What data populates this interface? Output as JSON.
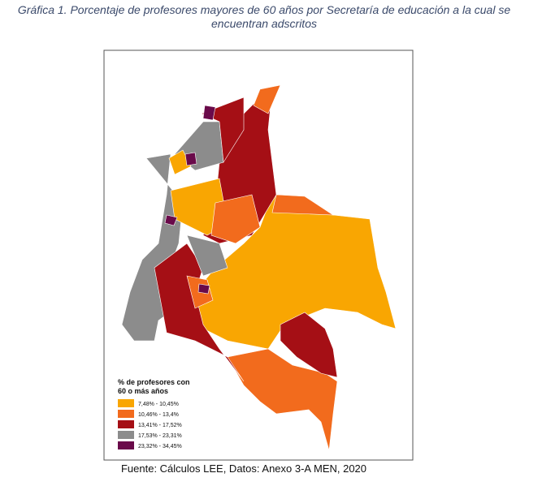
{
  "title": "Gráfica 1. Porcentaje de profesores mayores de 60 años por Secretaría de educación a la cual se encuentran adscritos",
  "map": {
    "legend": {
      "title": [
        "% de profesores con",
        "60 o más años"
      ],
      "items": [
        {
          "label": "7,48% - 10,45%",
          "color": "#f9a602"
        },
        {
          "label": "10,46% - 13,4%",
          "color": "#f26b1d"
        },
        {
          "label": "13,41% - 17,52%",
          "color": "#a50f15"
        },
        {
          "label": "17,53% - 23,31%",
          "color": "#8c8c8c"
        },
        {
          "label": "23,32% - 34,45%",
          "color": "#6a0a4a"
        }
      ]
    }
  },
  "source": "Fuente: Cálculos LEE, Datos: Anexo 3-A MEN, 2020"
}
